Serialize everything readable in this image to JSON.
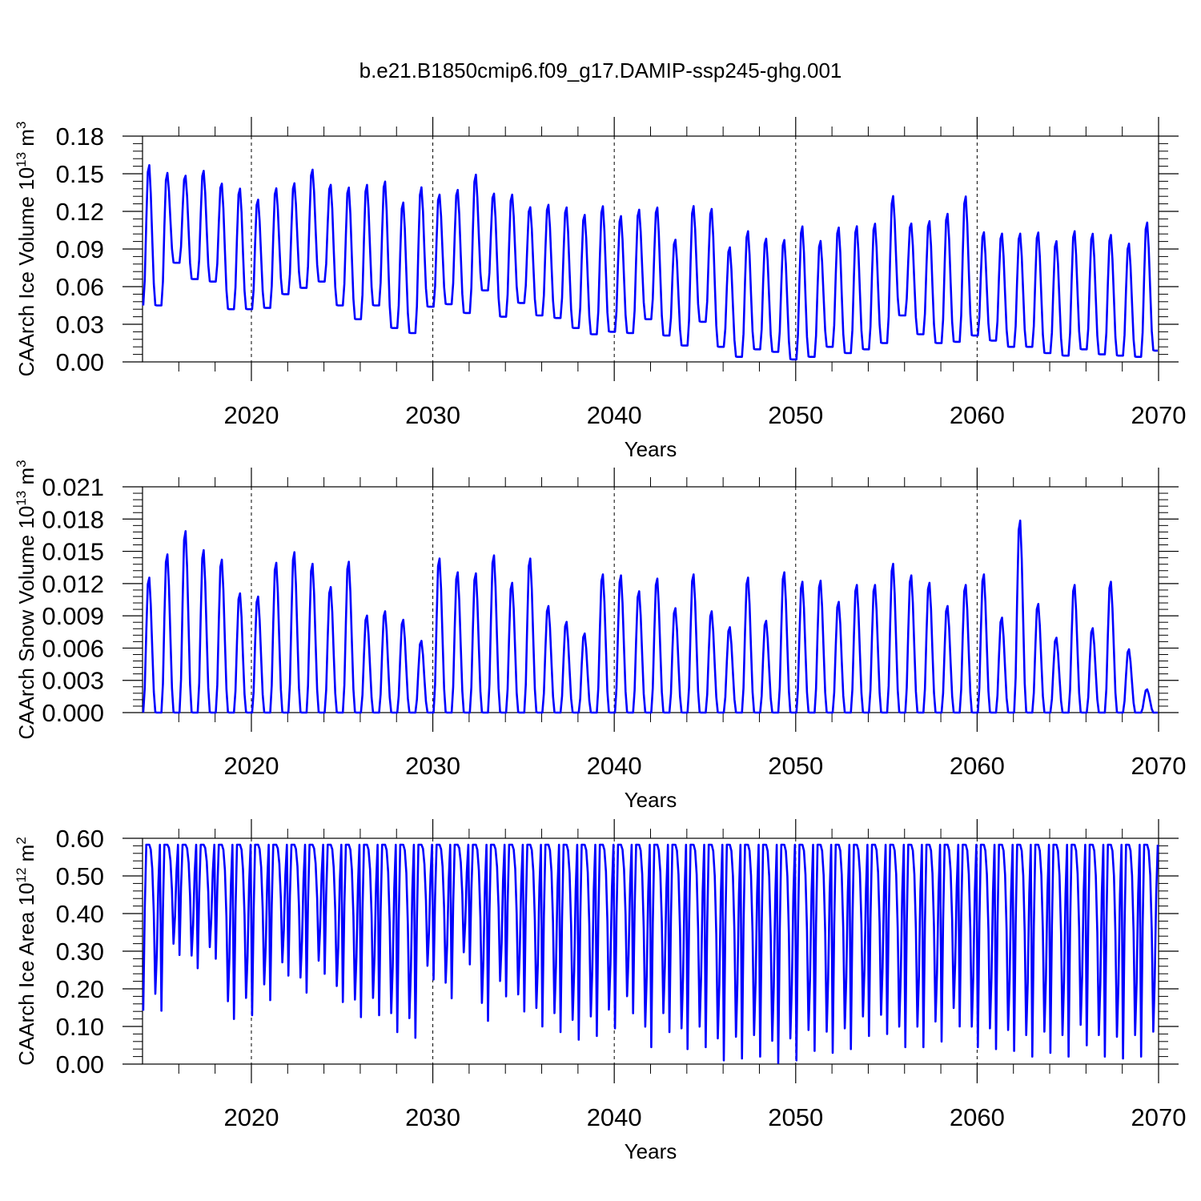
{
  "figure_title": "b.e21.B1850cmip6.f09_g17.DAMIP-ssp245-ghg.001",
  "colors": {
    "line": "#0000ff",
    "axis": "#000000",
    "grid": "#000000",
    "background": "#ffffff"
  },
  "chart_data": [
    {
      "type": "line",
      "title": "b.e21.B1850cmip6.f09_g17.DAMIP-ssp245-ghg.001",
      "xlabel": "Years",
      "ylabel_main": "CAArch Ice Volume 10",
      "ylabel_sup": "13",
      "ylabel_unit": " m",
      "ylabel_unit_sup": "3",
      "xlim": [
        2014,
        2070
      ],
      "ylim": [
        0,
        0.18
      ],
      "x_ticks": [
        2020,
        2030,
        2040,
        2050,
        2060,
        2070
      ],
      "x_tick_labels": [
        "2020",
        "2030",
        "2040",
        "2050",
        "2060",
        "2070"
      ],
      "y_ticks": [
        0,
        0.03,
        0.06,
        0.09,
        0.12,
        0.15,
        0.18
      ],
      "y_tick_labels": [
        "0.00",
        "0.03",
        "0.06",
        "0.09",
        "0.12",
        "0.15",
        "0.18"
      ],
      "grid": "dashed vertical at decades",
      "series": [
        {
          "name": "CAArch Ice Volume",
          "x_start": 2014.04,
          "x_step": 1,
          "annual_max": [
            0.159,
            0.152,
            0.15,
            0.154,
            0.144,
            0.14,
            0.131,
            0.14,
            0.144,
            0.155,
            0.143,
            0.141,
            0.143,
            0.146,
            0.129,
            0.141,
            0.135,
            0.139,
            0.151,
            0.136,
            0.135,
            0.125,
            0.127,
            0.125,
            0.119,
            0.126,
            0.118,
            0.123,
            0.125,
            0.099,
            0.126,
            0.124,
            0.093,
            0.106,
            0.1,
            0.099,
            0.11,
            0.098,
            0.109,
            0.11,
            0.112,
            0.134,
            0.112,
            0.114,
            0.12,
            0.134,
            0.105,
            0.104,
            0.104,
            0.105,
            0.098,
            0.106,
            0.104,
            0.103,
            0.096,
            0.113
          ],
          "annual_min": [
            0.045,
            0.079,
            0.066,
            0.064,
            0.042,
            0.042,
            0.043,
            0.054,
            0.059,
            0.064,
            0.045,
            0.034,
            0.045,
            0.027,
            0.023,
            0.044,
            0.046,
            0.039,
            0.057,
            0.036,
            0.047,
            0.037,
            0.035,
            0.027,
            0.022,
            0.024,
            0.023,
            0.034,
            0.021,
            0.013,
            0.032,
            0.012,
            0.004,
            0.01,
            0.008,
            0.002,
            0.004,
            0.012,
            0.007,
            0.01,
            0.015,
            0.037,
            0.022,
            0.015,
            0.016,
            0.021,
            0.017,
            0.012,
            0.012,
            0.007,
            0.005,
            0.01,
            0.006,
            0.005,
            0.004,
            0.009
          ]
        }
      ]
    },
    {
      "type": "line",
      "xlabel": "Years",
      "ylabel_main": "CAArch Snow Volume 10",
      "ylabel_sup": "13",
      "ylabel_unit": " m",
      "ylabel_unit_sup": "3",
      "xlim": [
        2014,
        2070
      ],
      "ylim": [
        0,
        0.021
      ],
      "x_ticks": [
        2020,
        2030,
        2040,
        2050,
        2060,
        2070
      ],
      "x_tick_labels": [
        "2020",
        "2030",
        "2040",
        "2050",
        "2060",
        "2070"
      ],
      "y_ticks": [
        0,
        0.003,
        0.006,
        0.009,
        0.012,
        0.015,
        0.018,
        0.021
      ],
      "y_tick_labels": [
        "0.000",
        "0.003",
        "0.006",
        "0.009",
        "0.012",
        "0.015",
        "0.018",
        "0.021"
      ],
      "grid": "dashed vertical at decades",
      "series": [
        {
          "name": "CAArch Snow Volume",
          "x_start": 2014.04,
          "x_step": 1,
          "annual_max": [
            0.0128,
            0.015,
            0.0172,
            0.0154,
            0.0145,
            0.0113,
            0.011,
            0.0142,
            0.0152,
            0.0141,
            0.0119,
            0.0143,
            0.0092,
            0.0096,
            0.0088,
            0.0068,
            0.0146,
            0.0133,
            0.0132,
            0.0149,
            0.0123,
            0.0146,
            0.0101,
            0.0086,
            0.0075,
            0.0131,
            0.013,
            0.0115,
            0.0127,
            0.0099,
            0.0131,
            0.0096,
            0.0081,
            0.0128,
            0.0087,
            0.0133,
            0.0124,
            0.0125,
            0.0105,
            0.0121,
            0.0121,
            0.0141,
            0.013,
            0.0123,
            0.0101,
            0.0121,
            0.0131,
            0.009,
            0.0182,
            0.0103,
            0.0071,
            0.0121,
            0.008,
            0.0124,
            0.006,
            0.0022
          ],
          "annual_min": [
            0.0,
            0.0,
            0.0,
            0.0,
            0.0,
            0.0,
            0.0,
            0.0,
            0.0,
            0.0,
            0.0,
            0.0,
            0.0,
            0.0,
            0.0,
            0.0,
            0.0,
            0.0,
            0.0,
            0.0,
            0.0,
            0.0,
            0.0,
            0.0,
            0.0,
            0.0,
            0.0,
            0.0,
            0.0,
            0.0,
            0.0,
            0.0,
            0.0,
            0.0,
            0.0,
            0.0,
            0.0,
            0.0,
            0.0,
            0.0,
            0.0,
            0.0,
            0.0,
            0.0,
            0.0,
            0.0,
            0.0,
            0.0,
            0.0,
            0.0,
            0.0,
            0.0,
            0.0,
            0.0,
            0.0,
            0.0
          ]
        }
      ]
    },
    {
      "type": "line",
      "xlabel": "Years",
      "ylabel_main": "CAArch Ice Area 10",
      "ylabel_sup": "12",
      "ylabel_unit": " m",
      "ylabel_unit_sup": "2",
      "xlim": [
        2014,
        2070
      ],
      "ylim": [
        0,
        0.6
      ],
      "x_ticks": [
        2020,
        2030,
        2040,
        2050,
        2060,
        2070
      ],
      "x_tick_labels": [
        "2020",
        "2030",
        "2040",
        "2050",
        "2060",
        "2070"
      ],
      "y_ticks": [
        0,
        0.1,
        0.2,
        0.3,
        0.4,
        0.5,
        0.6
      ],
      "y_tick_labels": [
        "0.00",
        "0.10",
        "0.20",
        "0.30",
        "0.40",
        "0.50",
        "0.60"
      ],
      "grid": "dashed vertical at decades",
      "series": [
        {
          "name": "CAArch Ice Area",
          "x_start": 2014.04,
          "x_step": 1,
          "annual_max": [
            0.583,
            0.583,
            0.583,
            0.583,
            0.583,
            0.583,
            0.583,
            0.583,
            0.583,
            0.583,
            0.583,
            0.583,
            0.583,
            0.583,
            0.583,
            0.583,
            0.583,
            0.583,
            0.583,
            0.583,
            0.583,
            0.583,
            0.583,
            0.583,
            0.583,
            0.583,
            0.583,
            0.583,
            0.583,
            0.583,
            0.583,
            0.583,
            0.583,
            0.583,
            0.583,
            0.583,
            0.583,
            0.583,
            0.583,
            0.583,
            0.583,
            0.583,
            0.583,
            0.583,
            0.583,
            0.583,
            0.583,
            0.583,
            0.583,
            0.583,
            0.583,
            0.583,
            0.583,
            0.583,
            0.583,
            0.583
          ],
          "annual_min": [
            0.142,
            0.29,
            0.255,
            0.28,
            0.12,
            0.13,
            0.17,
            0.235,
            0.19,
            0.24,
            0.165,
            0.125,
            0.13,
            0.085,
            0.07,
            0.225,
            0.175,
            0.265,
            0.115,
            0.18,
            0.14,
            0.1,
            0.085,
            0.065,
            0.075,
            0.095,
            0.135,
            0.045,
            0.085,
            0.04,
            0.045,
            0.01,
            0.015,
            0.02,
            0.003,
            0.01,
            0.035,
            0.03,
            0.04,
            0.075,
            0.08,
            0.045,
            0.045,
            0.06,
            0.1,
            0.045,
            0.04,
            0.035,
            0.02,
            0.03,
            0.02,
            0.05,
            0.02,
            0.015,
            0.02,
            0.03
          ]
        }
      ]
    }
  ]
}
